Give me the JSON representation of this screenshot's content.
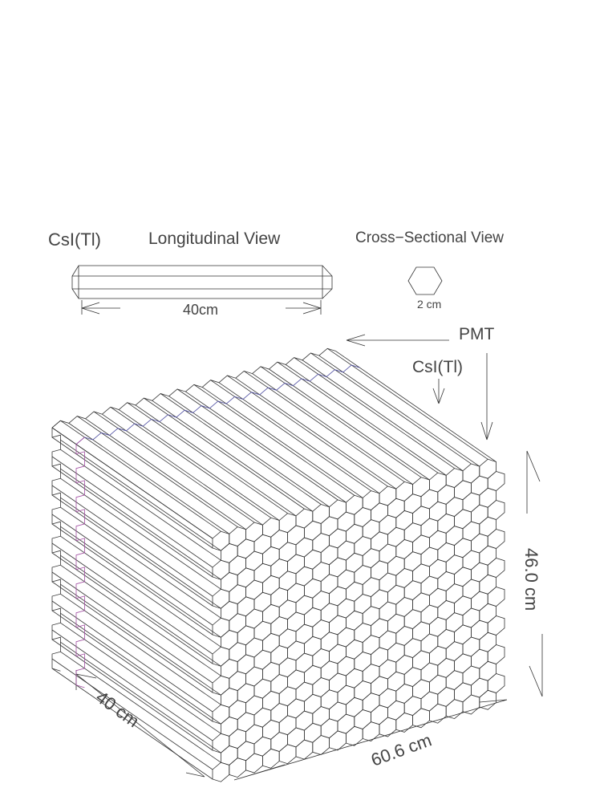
{
  "labels": {
    "crystal_material": "CsI(Tl)",
    "longitudinal_view": "Longitudinal View",
    "cross_sectional_view": "Cross−Sectional View",
    "crystal_length": "40cm",
    "crystal_width": "2 cm",
    "pmt": "PMT",
    "csi_pointer": "CsI(Tl)",
    "height": "46.0 cm",
    "depth": "40 cm",
    "width": "60.6 cm"
  }
}
